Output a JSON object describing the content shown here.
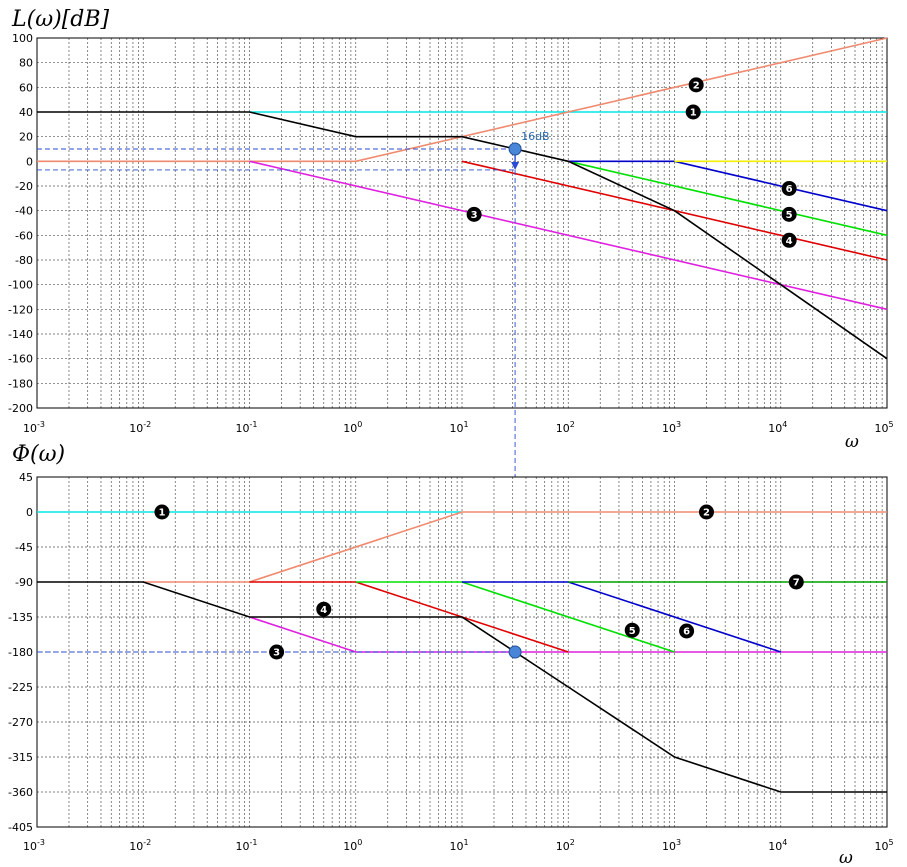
{
  "chart_data": [
    {
      "type": "line",
      "title": "L(ω)[dB]",
      "xlabel": "ω",
      "xscale": "log",
      "xlim": [
        0.001,
        100000
      ],
      "ylim": [
        -200,
        100
      ],
      "grid": true,
      "x_ticks": [
        {
          "base": "10",
          "exp": "-3"
        },
        {
          "base": "10",
          "exp": "-2"
        },
        {
          "base": "10",
          "exp": "-1"
        },
        {
          "base": "10",
          "exp": "0"
        },
        {
          "base": "10",
          "exp": "1"
        },
        {
          "base": "10",
          "exp": "2"
        },
        {
          "base": "10",
          "exp": "3"
        },
        {
          "base": "10",
          "exp": "4"
        },
        {
          "base": "10",
          "exp": "5"
        }
      ],
      "y_ticks": [
        "100",
        "80",
        "60",
        "40",
        "20",
        "0",
        "-20",
        "-40",
        "-60",
        "-80",
        "-100",
        "-120",
        "-140",
        "-160",
        "-180",
        "-200"
      ],
      "series": [
        {
          "label": "1",
          "color": "#00e5e5",
          "points": [
            [
              0.1,
              40
            ],
            [
              100000,
              40
            ]
          ],
          "label_at": [
            1500,
            40
          ]
        },
        {
          "label": "2",
          "color": "#f08a6e",
          "points": [
            [
              0.001,
              0
            ],
            [
              1,
              0
            ],
            [
              100000,
              100
            ]
          ],
          "label_at": [
            1600,
            62
          ]
        },
        {
          "label": "3",
          "color": "#e020e0",
          "points": [
            [
              0.1,
              0
            ],
            [
              100000,
              -120
            ]
          ],
          "label_at": [
            13,
            -43
          ]
        },
        {
          "label": "4",
          "color": "#e00000",
          "points": [
            [
              10,
              0
            ],
            [
              100000,
              -80
            ]
          ],
          "label_at": [
            12000,
            -64
          ]
        },
        {
          "label": "5",
          "color": "#00e000",
          "points": [
            [
              100,
              0
            ],
            [
              100000,
              -60
            ]
          ],
          "label_at": [
            12000,
            -43
          ]
        },
        {
          "label": "6",
          "color": "#0000cc",
          "points": [
            [
              100,
              0
            ],
            [
              1000,
              0
            ],
            [
              100000,
              -40
            ]
          ],
          "label_at": [
            12000,
            -22
          ]
        },
        {
          "label": "",
          "color": "#f0f000",
          "points": [
            [
              1000,
              0
            ],
            [
              100000,
              0
            ]
          ]
        },
        {
          "label": "",
          "color": "#000000",
          "points": [
            [
              0.001,
              40
            ],
            [
              0.1,
              40
            ],
            [
              1,
              20
            ],
            [
              10,
              20
            ],
            [
              100,
              0
            ],
            [
              1000,
              -40
            ],
            [
              10000,
              -100
            ],
            [
              100000,
              -160
            ]
          ]
        }
      ],
      "annotation": {
        "text": "16dB",
        "x": 31.6,
        "y": 10,
        "arrow_to": -7
      }
    },
    {
      "type": "line",
      "title": "Φ(ω)",
      "xlabel": "ω",
      "xscale": "log",
      "xlim": [
        0.001,
        100000
      ],
      "ylim": [
        -405,
        45
      ],
      "grid": true,
      "x_ticks": [
        {
          "base": "10",
          "exp": "-3"
        },
        {
          "base": "10",
          "exp": "-2"
        },
        {
          "base": "10",
          "exp": "-1"
        },
        {
          "base": "10",
          "exp": "0"
        },
        {
          "base": "10",
          "exp": "1"
        },
        {
          "base": "10",
          "exp": "2"
        },
        {
          "base": "10",
          "exp": "3"
        },
        {
          "base": "10",
          "exp": "4"
        },
        {
          "base": "10",
          "exp": "5"
        }
      ],
      "y_ticks": [
        "45",
        "0",
        "-45",
        "-90",
        "-135",
        "-180",
        "-225",
        "-270",
        "-315",
        "-360",
        "-405"
      ],
      "series": [
        {
          "label": "1",
          "color": "#00e5e5",
          "points": [
            [
              0.001,
              0
            ],
            [
              10,
              0
            ]
          ],
          "label_at": [
            0.015,
            0
          ]
        },
        {
          "label": "2",
          "color": "#f08a6e",
          "points": [
            [
              0.01,
              -90
            ],
            [
              0.1,
              -90
            ],
            [
              10,
              0
            ],
            [
              100000,
              0
            ]
          ],
          "label_at": [
            2000,
            0
          ]
        },
        {
          "label": "3",
          "color": "#e020e0",
          "points": [
            [
              0.1,
              -135
            ],
            [
              1,
              -180
            ],
            [
              100000,
              -180
            ]
          ],
          "label_at": [
            0.18,
            -180
          ]
        },
        {
          "label": "4",
          "color": "#e00000",
          "points": [
            [
              0.1,
              -90
            ],
            [
              1,
              -90
            ],
            [
              100,
              -180
            ]
          ],
          "label_at": [
            0.5,
            -125
          ]
        },
        {
          "label": "5",
          "color": "#00e000",
          "points": [
            [
              1,
              -90
            ],
            [
              10,
              -90
            ],
            [
              1000,
              -180
            ]
          ],
          "label_at": [
            400,
            -152
          ]
        },
        {
          "label": "6",
          "color": "#0000cc",
          "points": [
            [
              10,
              -90
            ],
            [
              100,
              -90
            ],
            [
              10000,
              -180
            ]
          ],
          "label_at": [
            1300,
            -153
          ]
        },
        {
          "label": "7",
          "color": "#00a000",
          "points": [
            [
              100,
              -90
            ],
            [
              100000,
              -90
            ]
          ],
          "label_at": [
            14000,
            -90
          ]
        },
        {
          "label": "",
          "color": "#000000",
          "points": [
            [
              0.001,
              -90
            ],
            [
              0.01,
              -90
            ],
            [
              0.1,
              -135
            ],
            [
              10,
              -135
            ],
            [
              100,
              -225
            ],
            [
              1000,
              -315
            ],
            [
              10000,
              -360
            ],
            [
              100000,
              -360
            ]
          ]
        }
      ],
      "annotation": {
        "x": 31.6,
        "y": -180
      }
    }
  ]
}
